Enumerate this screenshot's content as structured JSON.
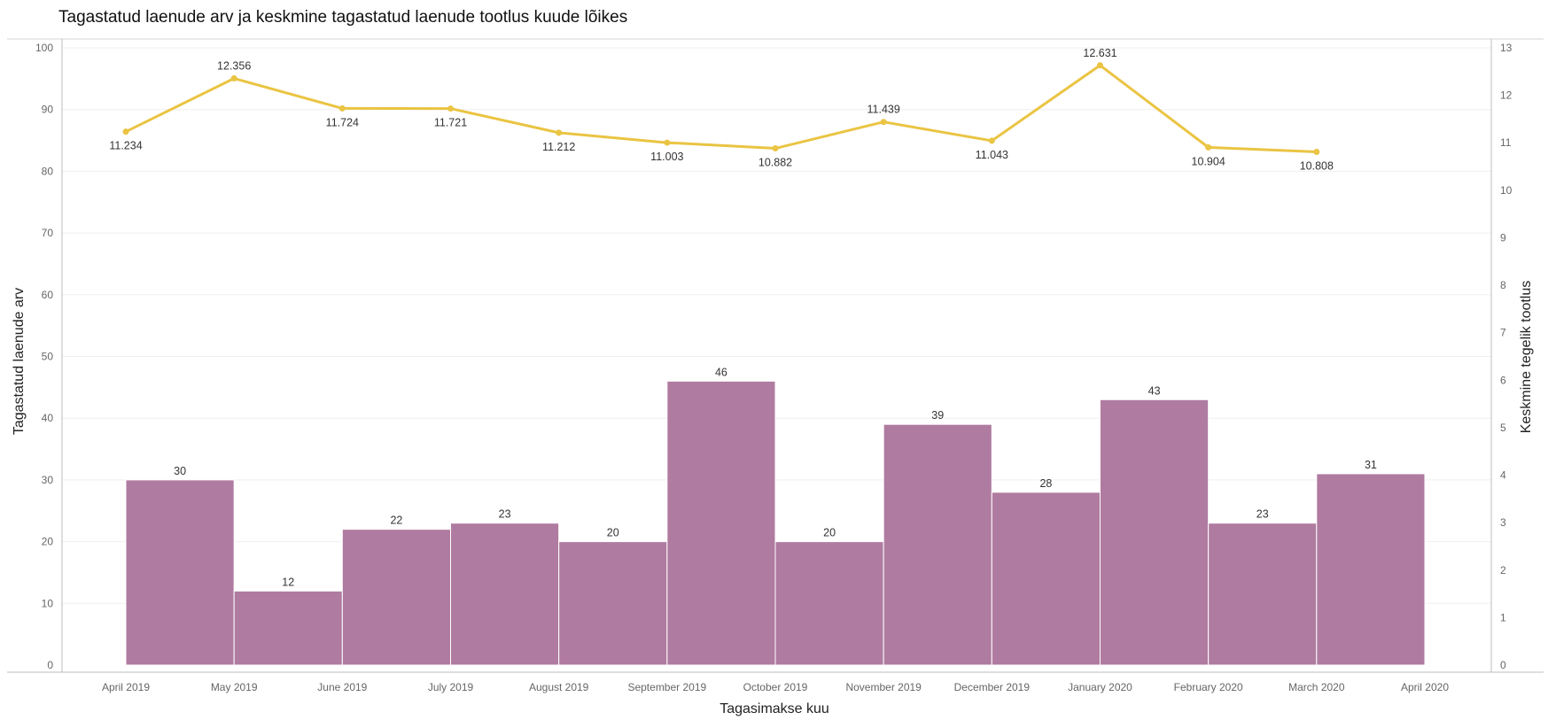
{
  "chart_data": {
    "type": "bar+line",
    "title": "Tagastatud laenude arv ja keskmine tagastatud laenude tootlus kuude lõikes",
    "xlabel": "Tagasimakse kuu",
    "ylabel_left": "Tagastatud laenude arv",
    "ylabel_right": "Keskmine tegelik tootlus",
    "x_ticks": [
      "April 2019",
      "May 2019",
      "June 2019",
      "July 2019",
      "August 2019",
      "September 2019",
      "October 2019",
      "November 2019",
      "December 2019",
      "January 2020",
      "February 2020",
      "March 2020",
      "April 2020"
    ],
    "ylim_left": [
      0,
      100
    ],
    "yticks_left": [
      0,
      10,
      20,
      30,
      40,
      50,
      60,
      70,
      80,
      90,
      100
    ],
    "ylim_right": [
      0,
      13
    ],
    "yticks_right": [
      0,
      1,
      2,
      3,
      4,
      5,
      6,
      7,
      8,
      9,
      10,
      11,
      12,
      13
    ],
    "grid": true,
    "series": [
      {
        "type": "bar",
        "axis": "left",
        "color": "#b07ba0",
        "values": [
          30,
          12,
          22,
          23,
          20,
          46,
          20,
          39,
          28,
          43,
          23,
          31
        ],
        "labels": [
          "30",
          "12",
          "22",
          "23",
          "20",
          "46",
          "20",
          "39",
          "28",
          "43",
          "23",
          "31"
        ]
      },
      {
        "type": "line",
        "axis": "right",
        "color": "#eac443",
        "values": [
          11.234,
          12.356,
          11.724,
          11.721,
          11.212,
          11.003,
          10.882,
          11.439,
          11.043,
          12.631,
          10.904,
          10.808
        ],
        "labels": [
          "11.234",
          "12.356",
          "11.724",
          "11.721",
          "11.212",
          "11.003",
          "10.882",
          "11.439",
          "11.043",
          "12.631",
          "10.904",
          "10.808"
        ]
      }
    ]
  }
}
